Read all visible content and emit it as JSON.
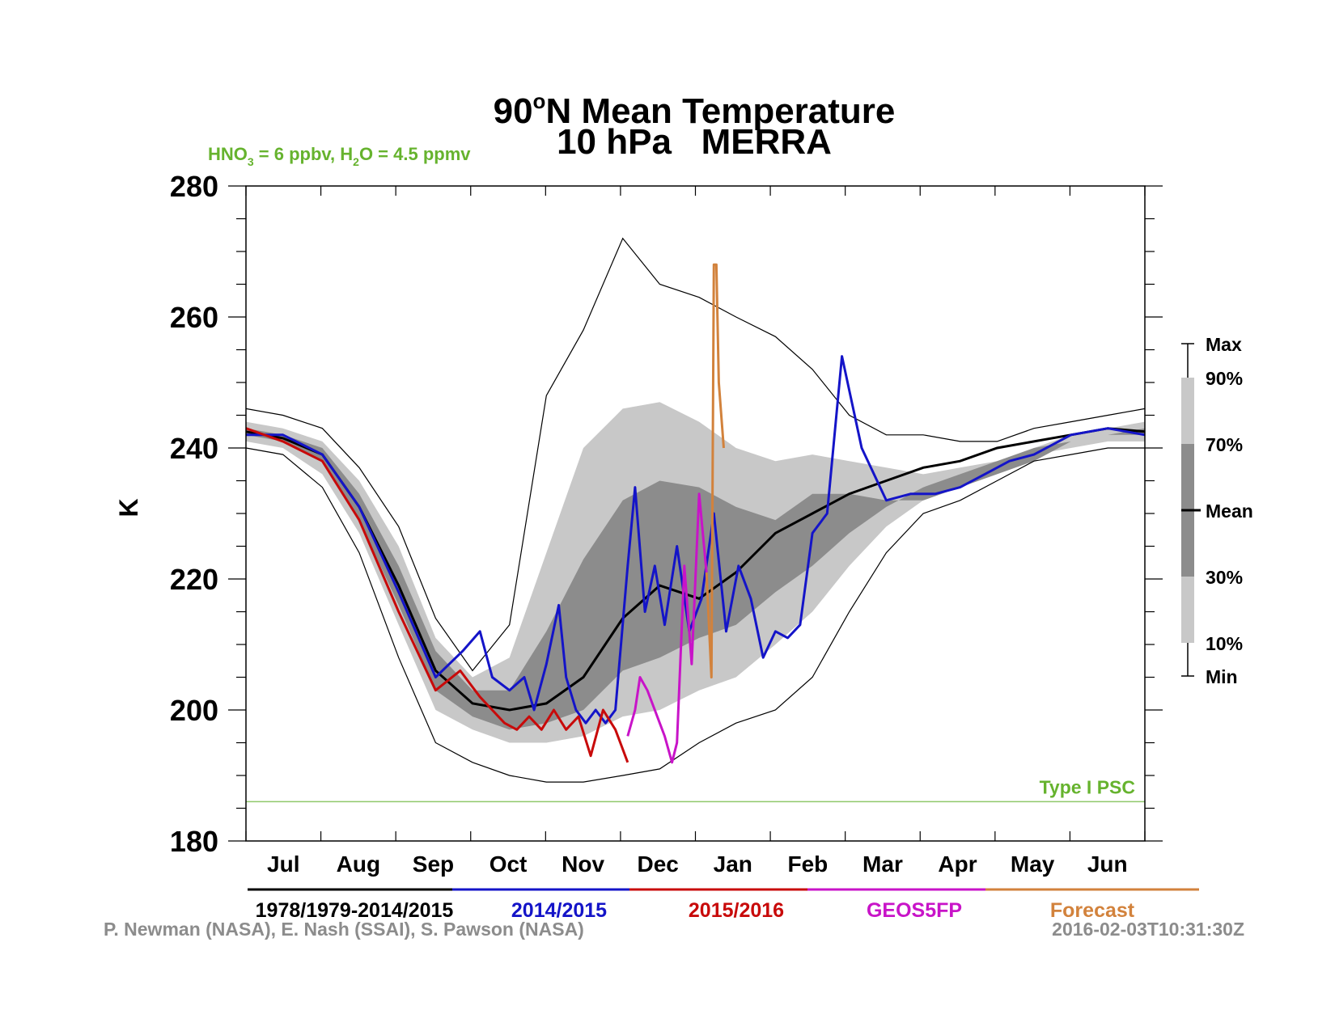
{
  "chart_data": {
    "type": "line",
    "title_prefix": "90",
    "title_sup": "o",
    "title_rest": "N Mean Temperature",
    "subtitle": "10 hPa   MERRA",
    "annotation": {
      "hno3": "HNO",
      "hno3_sub": "3",
      "hno3_val": " = 6 ppbv, H",
      "h2o_sub": "2",
      "h2o_val": "O = 4.5 ppmv"
    },
    "ylabel": "K",
    "ylim": [
      180,
      280
    ],
    "yticks": [
      "180",
      "200",
      "220",
      "240",
      "260",
      "280"
    ],
    "months": [
      "Jul",
      "Aug",
      "Sep",
      "Oct",
      "Nov",
      "Dec",
      "Jan",
      "Feb",
      "Mar",
      "Apr",
      "May",
      "Jun"
    ],
    "x_unit_note": "day index from 1 Jul (0-365)",
    "psc_threshold": {
      "label": "Type I PSC",
      "value": 186
    },
    "band_legend": [
      "Max",
      "90%",
      "70%",
      "Mean",
      "30%",
      "10%",
      "Min"
    ],
    "legend": [
      {
        "label": "1978/1979-2014/2015",
        "color": "#000000"
      },
      {
        "label": "2014/2015",
        "color": "#1414c8"
      },
      {
        "label": "2015/2016",
        "color": "#c80a0a"
      },
      {
        "label": "GEOS5FP",
        "color": "#c814c8"
      },
      {
        "label": "Forecast",
        "color": "#d2823c"
      }
    ],
    "climatology": {
      "days": [
        0,
        15,
        31,
        46,
        62,
        77,
        92,
        107,
        122,
        137,
        153,
        168,
        184,
        199,
        215,
        230,
        245,
        260,
        275,
        290,
        305,
        320,
        335,
        350,
        365
      ],
      "max": [
        246,
        245,
        243,
        237,
        228,
        214,
        206,
        213,
        248,
        258,
        272,
        265,
        263,
        260,
        257,
        252,
        245,
        242,
        242,
        241,
        241,
        243,
        244,
        245,
        246
      ],
      "p90": [
        244,
        243,
        241,
        235,
        225,
        211,
        205,
        208,
        224,
        240,
        246,
        247,
        244,
        240,
        238,
        239,
        238,
        237,
        236,
        237,
        238,
        240,
        242,
        243,
        244
      ],
      "p70": [
        243,
        242,
        240,
        233,
        222,
        209,
        203,
        203,
        212,
        223,
        232,
        235,
        234,
        231,
        229,
        233,
        233,
        232,
        232,
        234,
        236,
        238,
        241,
        242,
        243
      ],
      "mean": [
        242.5,
        241.5,
        239,
        231,
        219,
        206,
        201,
        200,
        201,
        205,
        214,
        219,
        217,
        221,
        227,
        230,
        233,
        235,
        237,
        238,
        240,
        241,
        242,
        243,
        242.5
      ],
      "p30": [
        242,
        241,
        238,
        229,
        216,
        203,
        199,
        197,
        198,
        200,
        206,
        208,
        211,
        213,
        218,
        222,
        227,
        231,
        234,
        236,
        238,
        240,
        241,
        242,
        242
      ],
      "p10": [
        241,
        240,
        236,
        227,
        213,
        200,
        197,
        195,
        195,
        196,
        199,
        200,
        203,
        205,
        210,
        215,
        222,
        228,
        232,
        234,
        237,
        239,
        240,
        241,
        241
      ],
      "min": [
        240,
        239,
        234,
        224,
        208,
        195,
        192,
        190,
        189,
        189,
        190,
        191,
        195,
        198,
        200,
        205,
        215,
        224,
        230,
        232,
        235,
        238,
        239,
        240,
        240
      ]
    },
    "series": [
      {
        "name": "2014/2015",
        "color": "#1414c8",
        "x": [
          0,
          15,
          31,
          46,
          62,
          77,
          88,
          95,
          100,
          107,
          113,
          117,
          122,
          127,
          130,
          134,
          138,
          142,
          146,
          150,
          155,
          158,
          162,
          166,
          170,
          175,
          180,
          185,
          190,
          195,
          200,
          205,
          210,
          215,
          220,
          225,
          230,
          236,
          242,
          250,
          260,
          270,
          280,
          290,
          300,
          310,
          320,
          335,
          350,
          365
        ],
        "y": [
          242,
          242,
          239,
          231,
          218,
          205,
          209,
          212,
          205,
          203,
          205,
          200,
          207,
          216,
          205,
          200,
          198,
          200,
          198,
          200,
          222,
          234,
          215,
          222,
          213,
          225,
          212,
          217,
          230,
          212,
          222,
          217,
          208,
          212,
          211,
          213,
          227,
          230,
          254,
          240,
          232,
          233,
          233,
          234,
          236,
          238,
          239,
          242,
          243,
          242
        ]
      },
      {
        "name": "2015/2016",
        "color": "#c80a0a",
        "x": [
          0,
          15,
          31,
          46,
          62,
          77,
          87,
          95,
          100,
          105,
          110,
          115,
          120,
          125,
          130,
          135,
          140,
          145,
          150,
          155
        ],
        "y": [
          243,
          241,
          238,
          229,
          215,
          203,
          206,
          202,
          200,
          198,
          197,
          199,
          197,
          200,
          197,
          199,
          193,
          200,
          197,
          192
        ]
      },
      {
        "name": "GEOS5FP",
        "color": "#c814c8",
        "x": [
          155,
          158,
          160,
          163,
          166,
          168,
          170,
          173,
          175,
          178,
          181,
          184,
          187
        ],
        "y": [
          196,
          200,
          205,
          203,
          200,
          198,
          196,
          192,
          195,
          222,
          207,
          233,
          221
        ]
      },
      {
        "name": "Forecast",
        "color": "#d2823c",
        "x": [
          187,
          189,
          190,
          191,
          192,
          194
        ],
        "y": [
          221,
          205,
          268,
          268,
          250,
          240
        ]
      }
    ]
  }
}
